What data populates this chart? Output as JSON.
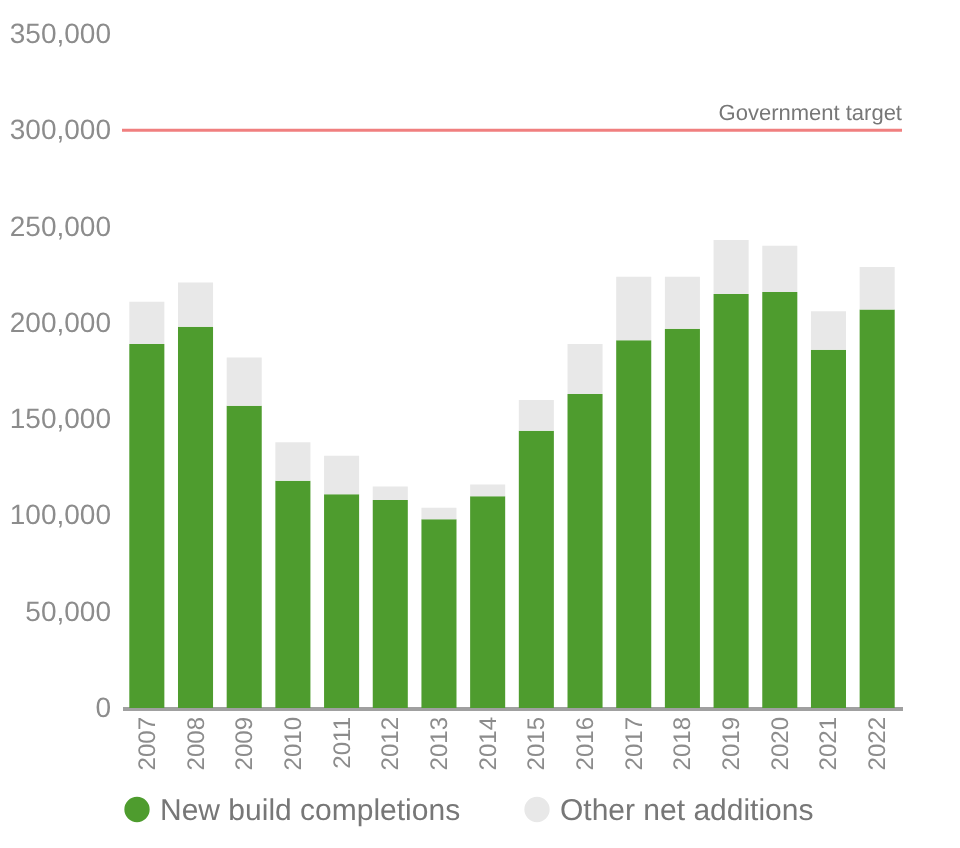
{
  "chart_data": {
    "type": "bar",
    "stacked": true,
    "categories": [
      "2007",
      "2008",
      "2009",
      "2010",
      "2011",
      "2012",
      "2013",
      "2014",
      "2015",
      "2016",
      "2017",
      "2018",
      "2019",
      "2020",
      "2021",
      "2022"
    ],
    "series": [
      {
        "name": "New build completions",
        "color": "#4e9c2e",
        "values": [
          189000,
          198000,
          157000,
          118000,
          111000,
          108000,
          98000,
          110000,
          144000,
          163000,
          191000,
          197000,
          215000,
          216000,
          186000,
          207000
        ]
      },
      {
        "name": "Other net additions",
        "color": "#e8e8e8",
        "values": [
          22000,
          23000,
          25000,
          20000,
          20000,
          7000,
          6000,
          6000,
          16000,
          26000,
          33000,
          27000,
          28000,
          24000,
          20000,
          22000
        ]
      }
    ],
    "ylim": [
      0,
      350000
    ],
    "yticks": [
      0,
      {
        "value": 50000,
        "label": "50,000"
      },
      {
        "value": 100000,
        "label": "100,000"
      },
      {
        "value": 150000,
        "label": "150,000"
      },
      {
        "value": 200000,
        "label": "200,000"
      },
      {
        "value": 250000,
        "label": "250,000"
      },
      {
        "value": 300000,
        "label": "300,000"
      },
      {
        "value": 350000,
        "label": "350,000"
      }
    ],
    "ref_lines": [
      {
        "axis": "y",
        "value": 300000,
        "label": "Government target",
        "color": "#f07f7f"
      }
    ],
    "legend": "bottom"
  }
}
